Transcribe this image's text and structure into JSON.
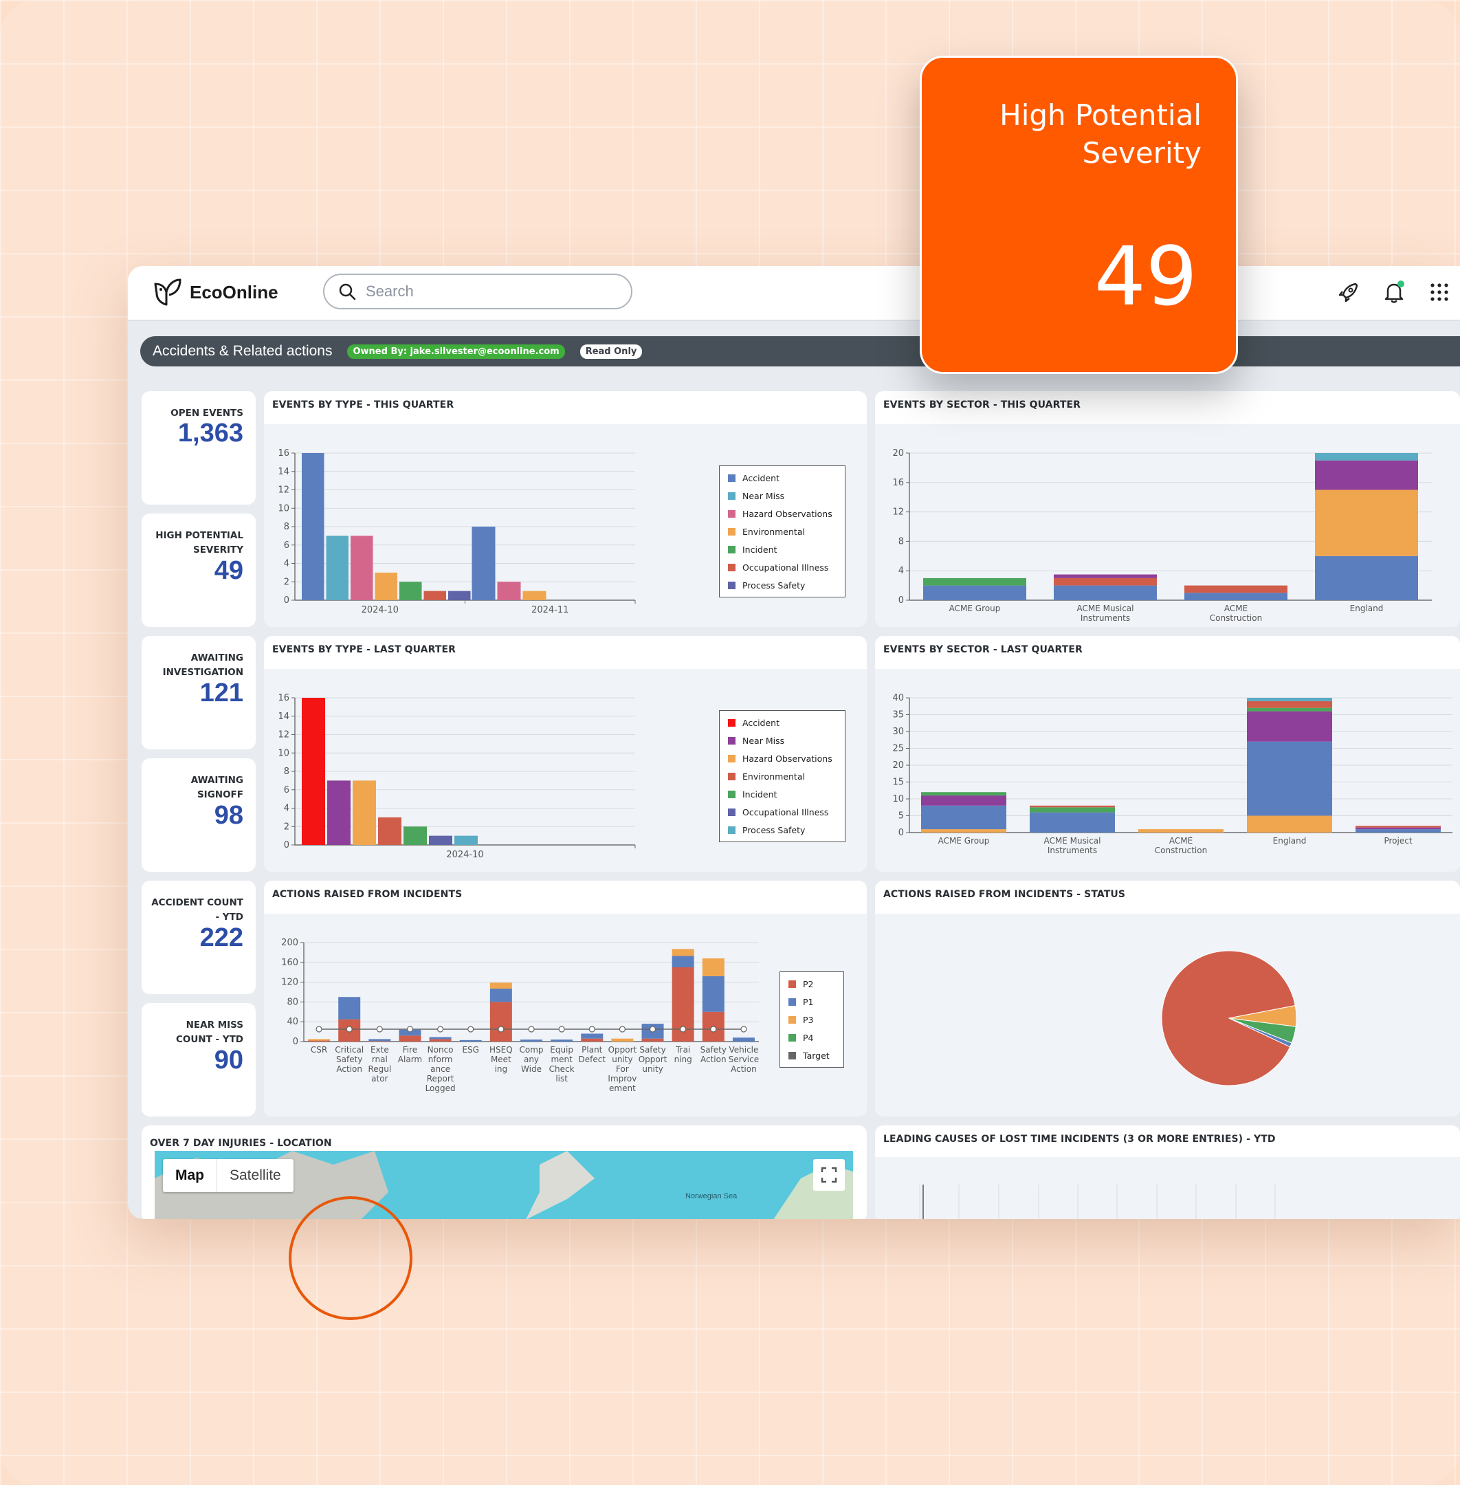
{
  "app": {
    "brand": "EcoOnline",
    "search_placeholder": "Search"
  },
  "dashboard": {
    "title": "Accidents & Related actions",
    "owner_badge": "Owned By: jake.silvester@ecoonline.com",
    "access_badge": "Read Only"
  },
  "callout": {
    "title": "High Potential Severity",
    "value": "49",
    "color": "#ff5a00"
  },
  "kpis": [
    {
      "label": "OPEN EVENTS",
      "value": "1,363"
    },
    {
      "label": "HIGH POTENTIAL SEVERITY",
      "value": "49"
    },
    {
      "label": "AWAITING INVESTIGATION",
      "value": "121"
    },
    {
      "label": "AWAITING SIGNOFF",
      "value": "98"
    },
    {
      "label": "ACCIDENT COUNT - YTD",
      "value": "222"
    },
    {
      "label": "NEAR MISS COUNT - YTD",
      "value": "90"
    }
  ],
  "panels": {
    "type_this_q": "EVENTS BY TYPE - THIS QUARTER",
    "sector_this_q": "EVENTS BY SECTOR - THIS QUARTER",
    "type_last_q": "EVENTS BY TYPE - LAST QUARTER",
    "sector_last_q": "EVENTS BY SECTOR - LAST QUARTER",
    "actions": "ACTIONS RAISED FROM INCIDENTS",
    "actions_status": "ACTIONS RAISED FROM INCIDENTS - STATUS",
    "map": "OVER 7 DAY INJURIES - LOCATION",
    "lost_time": "LEADING CAUSES OF LOST TIME INCIDENTS (3 OR MORE ENTRIES) - YTD"
  },
  "map": {
    "tab_map": "Map",
    "tab_satellite": "Satellite",
    "sea_label": "Norwegian Sea"
  },
  "chart_data": [
    {
      "id": "type_this_q",
      "type": "bar",
      "categories": [
        "2024-10",
        "2024-11"
      ],
      "ylim": [
        0,
        16
      ],
      "yticks": [
        0,
        2,
        4,
        6,
        8,
        10,
        12,
        14,
        16
      ],
      "series": [
        {
          "name": "Accident",
          "color": "#5b7fbe",
          "values": [
            16,
            8
          ]
        },
        {
          "name": "Near Miss",
          "color": "#5aabc4",
          "values": [
            7,
            0
          ]
        },
        {
          "name": "Hazard Observations",
          "color": "#d4668c",
          "values": [
            7,
            2
          ]
        },
        {
          "name": "Environmental",
          "color": "#f0a64f",
          "values": [
            3,
            1
          ]
        },
        {
          "name": "Incident",
          "color": "#4ba55c",
          "values": [
            2,
            0
          ]
        },
        {
          "name": "Occupational Illness",
          "color": "#cf5d4a",
          "values": [
            1,
            0
          ]
        },
        {
          "name": "Process Safety",
          "color": "#5f63a8",
          "values": [
            1,
            0
          ]
        }
      ],
      "legend": "right"
    },
    {
      "id": "sector_this_q",
      "type": "bar",
      "stacked": true,
      "categories": [
        "ACME Group",
        "ACME Musical Instruments",
        "ACME Construction",
        "England"
      ],
      "ylim": [
        0,
        20
      ],
      "yticks": [
        0,
        4,
        8,
        12,
        16,
        20
      ],
      "series": [
        {
          "color": "#5b7fbe",
          "values": [
            2,
            2,
            1,
            6
          ]
        },
        {
          "color": "#cf5d4a",
          "values": [
            0,
            1,
            1,
            0
          ]
        },
        {
          "color": "#4ba55c",
          "values": [
            1,
            0,
            0,
            0
          ]
        },
        {
          "color": "#f0a64f",
          "values": [
            0,
            0,
            0,
            9
          ]
        },
        {
          "color": "#8e3f99",
          "values": [
            0,
            0.5,
            0,
            4
          ]
        },
        {
          "color": "#5aabc4",
          "values": [
            0,
            0,
            0,
            1
          ]
        }
      ]
    },
    {
      "id": "type_last_q",
      "type": "bar",
      "categories": [
        "2024-10"
      ],
      "ylim": [
        0,
        16
      ],
      "yticks": [
        0,
        2,
        4,
        6,
        8,
        10,
        12,
        14,
        16
      ],
      "series": [
        {
          "name": "Accident",
          "color": "#f51414",
          "values": [
            16
          ]
        },
        {
          "name": "Near Miss",
          "color": "#8e3f99",
          "values": [
            7
          ]
        },
        {
          "name": "Hazard Observations",
          "color": "#f0a64f",
          "values": [
            7
          ]
        },
        {
          "name": "Environmental",
          "color": "#cf5d4a",
          "values": [
            3
          ]
        },
        {
          "name": "Incident",
          "color": "#4ba55c",
          "values": [
            2
          ]
        },
        {
          "name": "Occupational Illness",
          "color": "#5f63a8",
          "values": [
            1
          ]
        },
        {
          "name": "Process Safety",
          "color": "#5aabc4",
          "values": [
            1
          ]
        }
      ],
      "legend": "right"
    },
    {
      "id": "sector_last_q",
      "type": "bar",
      "stacked": true,
      "categories": [
        "ACME Group",
        "ACME Musical Instruments",
        "ACME Construction",
        "England",
        "Project"
      ],
      "ylim": [
        0,
        40
      ],
      "yticks": [
        0,
        5,
        10,
        15,
        20,
        25,
        30,
        35,
        40
      ],
      "series": [
        {
          "color": "#f0a64f",
          "values": [
            1,
            0,
            1,
            5,
            0
          ]
        },
        {
          "color": "#5b7fbe",
          "values": [
            7,
            6,
            0,
            22,
            1
          ]
        },
        {
          "color": "#8e3f99",
          "values": [
            3,
            0,
            0,
            9,
            0.5
          ]
        },
        {
          "color": "#4ba55c",
          "values": [
            1,
            1.5,
            0,
            1,
            0
          ]
        },
        {
          "color": "#cf5d4a",
          "values": [
            0,
            0.5,
            0,
            2,
            0.5
          ]
        },
        {
          "color": "#5aabc4",
          "values": [
            0,
            0,
            0,
            1,
            0
          ]
        }
      ]
    },
    {
      "id": "actions",
      "type": "bar",
      "stacked": true,
      "categories": [
        "CSR",
        "Critical Safety Action",
        "External Regulator",
        "Fire Alarm",
        "Nonconformance Report Logged",
        "ESG",
        "HSEQ Meeting",
        "Company Wide",
        "Equipment Check list",
        "Plant Defect",
        "Opportunity For Improvement",
        "Safety Opportunity",
        "Training",
        "Safety Action",
        "Vehicle Service Action"
      ],
      "category_labels": [
        [
          "CSR"
        ],
        [
          "Critical",
          "Safety",
          "Action"
        ],
        [
          "Exte",
          "rnal",
          "Regul",
          "ator"
        ],
        [
          "Fire",
          "Alarm"
        ],
        [
          "Nonco",
          "nform",
          "ance",
          "Report",
          "Logged"
        ],
        [
          "ESG"
        ],
        [
          "HSEQ",
          "Meet",
          "ing"
        ],
        [
          "Comp",
          "any",
          "Wide"
        ],
        [
          "Equip",
          "ment",
          "Check",
          "list"
        ],
        [
          "Plant",
          "Defect"
        ],
        [
          "Opport",
          "unity",
          "For",
          "Improv",
          "ement"
        ],
        [
          "Safety",
          "Opport",
          "unity"
        ],
        [
          "Trai",
          "ning"
        ],
        [
          "Safety",
          "Action"
        ],
        [
          "Vehicle",
          "Service",
          "Action"
        ]
      ],
      "ylim": [
        0,
        200
      ],
      "yticks": [
        0,
        40,
        80,
        120,
        160,
        200
      ],
      "series": [
        {
          "name": "P2",
          "color": "#cf5d4a",
          "values": [
            2,
            45,
            1,
            12,
            5,
            0,
            80,
            0,
            0,
            6,
            0,
            6,
            150,
            60,
            0
          ]
        },
        {
          "name": "P1",
          "color": "#5b7fbe",
          "values": [
            0,
            45,
            4,
            12,
            4,
            3,
            27,
            4,
            4,
            10,
            0,
            30,
            23,
            72,
            8
          ]
        },
        {
          "name": "P3",
          "color": "#f0a64f",
          "values": [
            3,
            0,
            0,
            0,
            0,
            0,
            12,
            0,
            0,
            0,
            6,
            0,
            14,
            36,
            0
          ]
        },
        {
          "name": "P4",
          "color": "#4ba55c",
          "values": [
            0,
            0,
            0,
            0,
            0,
            0,
            0,
            0,
            0,
            0,
            0,
            0,
            0,
            0,
            0
          ]
        },
        {
          "name": "Target",
          "color": "#666666",
          "type": "line",
          "values": [
            25,
            25,
            25,
            25,
            25,
            25,
            25,
            25,
            25,
            25,
            25,
            25,
            25,
            25,
            25
          ]
        }
      ],
      "legend": "right"
    },
    {
      "id": "actions_status",
      "type": "pie",
      "slices": [
        {
          "color": "#cf5d4a",
          "value": 90
        },
        {
          "color": "#f0a64f",
          "value": 5
        },
        {
          "color": "#4ba55c",
          "value": 4
        },
        {
          "color": "#5b7fbe",
          "value": 1
        }
      ]
    }
  ]
}
